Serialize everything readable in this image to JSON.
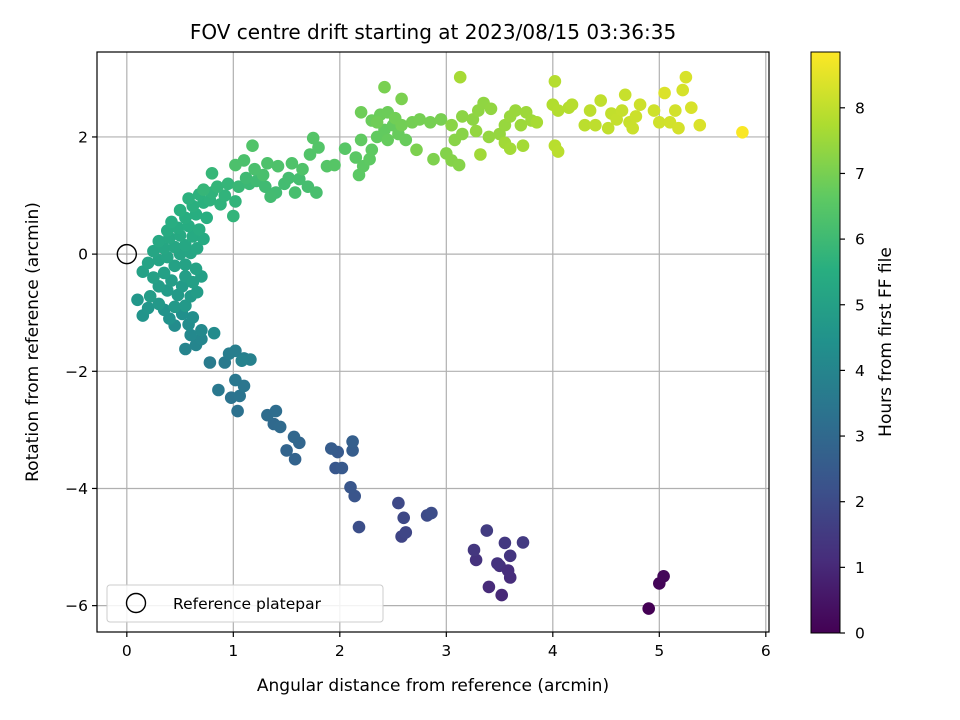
{
  "chart_data": {
    "type": "scatter",
    "title": "FOV centre drift starting at 2023/08/15 03:36:35",
    "xlabel": "Angular distance from reference (arcmin)",
    "ylabel": "Rotation from reference (arcmin)",
    "xlim": [
      -0.28,
      6.03
    ],
    "ylim": [
      -6.45,
      3.45
    ],
    "xticks": [
      0,
      1,
      2,
      3,
      4,
      5,
      6
    ],
    "yticks": [
      -6,
      -4,
      -2,
      0,
      2
    ],
    "grid": true,
    "legend": {
      "placement": "lower-left",
      "entries": [
        "Reference platepar"
      ]
    },
    "reference_point": {
      "x": 0,
      "y": 0,
      "label": "Reference platepar"
    },
    "colorbar": {
      "label": "Hours from first FF file",
      "range": [
        0,
        8.85
      ],
      "ticks": [
        0,
        1,
        2,
        3,
        4,
        5,
        6,
        7,
        8
      ],
      "colormap": "viridis"
    },
    "points": [
      [
        4.9,
        -6.05,
        0.0
      ],
      [
        5.0,
        -5.62,
        0.1
      ],
      [
        5.04,
        -5.5,
        0.15
      ],
      [
        3.52,
        -5.82,
        1.0
      ],
      [
        3.4,
        -5.68,
        1.05
      ],
      [
        3.6,
        -5.52,
        1.1
      ],
      [
        3.58,
        -5.4,
        1.15
      ],
      [
        3.5,
        -5.32,
        1.2
      ],
      [
        3.28,
        -5.22,
        1.25
      ],
      [
        3.48,
        -5.28,
        1.3
      ],
      [
        3.6,
        -5.15,
        1.35
      ],
      [
        3.26,
        -5.05,
        1.4
      ],
      [
        3.55,
        -4.93,
        1.45
      ],
      [
        3.72,
        -4.92,
        1.5
      ],
      [
        3.38,
        -4.72,
        1.55
      ],
      [
        2.58,
        -4.82,
        1.8
      ],
      [
        2.62,
        -4.75,
        1.85
      ],
      [
        2.6,
        -4.5,
        1.9
      ],
      [
        2.55,
        -4.25,
        1.95
      ],
      [
        2.82,
        -4.46,
        2.0
      ],
      [
        2.86,
        -4.42,
        2.05
      ],
      [
        2.18,
        -4.66,
        2.1
      ],
      [
        2.14,
        -4.13,
        2.3
      ],
      [
        2.1,
        -3.98,
        2.35
      ],
      [
        1.96,
        -3.65,
        2.4
      ],
      [
        2.02,
        -3.65,
        2.45
      ],
      [
        1.98,
        -3.38,
        2.5
      ],
      [
        1.92,
        -3.32,
        2.55
      ],
      [
        2.12,
        -3.35,
        2.6
      ],
      [
        2.12,
        -3.2,
        2.65
      ],
      [
        1.58,
        -3.5,
        2.8
      ],
      [
        1.5,
        -3.35,
        2.85
      ],
      [
        1.62,
        -3.22,
        2.9
      ],
      [
        1.57,
        -3.12,
        2.95
      ],
      [
        1.38,
        -2.9,
        3.0
      ],
      [
        1.44,
        -2.95,
        3.05
      ],
      [
        1.32,
        -2.75,
        3.1
      ],
      [
        1.4,
        -2.68,
        3.15
      ],
      [
        1.04,
        -2.68,
        3.3
      ],
      [
        0.98,
        -2.45,
        3.35
      ],
      [
        1.06,
        -2.42,
        3.4
      ],
      [
        1.1,
        -2.25,
        3.45
      ],
      [
        1.02,
        -2.15,
        3.5
      ],
      [
        0.86,
        -2.32,
        3.55
      ],
      [
        0.92,
        -1.85,
        3.6
      ],
      [
        0.78,
        -1.85,
        3.65
      ],
      [
        0.96,
        -1.7,
        3.7
      ],
      [
        1.02,
        -1.65,
        3.75
      ],
      [
        1.1,
        -1.78,
        3.8
      ],
      [
        1.16,
        -1.8,
        3.85
      ],
      [
        1.08,
        -1.82,
        3.9
      ],
      [
        0.55,
        -1.62,
        3.95
      ],
      [
        0.65,
        -1.55,
        4.0
      ],
      [
        0.7,
        -1.45,
        4.05
      ],
      [
        0.6,
        -1.38,
        4.1
      ],
      [
        0.7,
        -1.3,
        4.15
      ],
      [
        0.82,
        -1.35,
        4.2
      ],
      [
        0.45,
        -1.22,
        4.25
      ],
      [
        0.58,
        -1.2,
        4.3
      ],
      [
        0.62,
        -1.08,
        4.35
      ],
      [
        0.52,
        -1.02,
        4.4
      ],
      [
        0.4,
        -1.1,
        4.45
      ],
      [
        0.35,
        -0.95,
        4.5
      ],
      [
        0.15,
        -1.05,
        4.55
      ],
      [
        0.2,
        -0.92,
        4.6
      ],
      [
        0.1,
        -0.78,
        4.65
      ],
      [
        0.3,
        -0.85,
        4.7
      ],
      [
        0.45,
        -0.9,
        4.72
      ],
      [
        0.55,
        -0.88,
        4.74
      ],
      [
        0.6,
        -0.72,
        4.76
      ],
      [
        0.48,
        -0.7,
        4.78
      ],
      [
        0.38,
        -0.62,
        4.8
      ],
      [
        0.52,
        -0.55,
        4.82
      ],
      [
        0.66,
        -0.65,
        4.84
      ],
      [
        0.22,
        -0.72,
        4.86
      ],
      [
        0.3,
        -0.55,
        4.88
      ],
      [
        0.42,
        -0.45,
        4.9
      ],
      [
        0.55,
        -0.38,
        4.92
      ],
      [
        0.62,
        -0.48,
        4.94
      ],
      [
        0.7,
        -0.38,
        4.96
      ],
      [
        0.35,
        -0.32,
        4.98
      ],
      [
        0.25,
        -0.4,
        5.0
      ],
      [
        0.15,
        -0.3,
        5.02
      ],
      [
        0.45,
        -0.2,
        5.04
      ],
      [
        0.55,
        -0.18,
        5.06
      ],
      [
        0.65,
        -0.25,
        5.08
      ],
      [
        0.2,
        -0.15,
        5.1
      ],
      [
        0.3,
        -0.1,
        5.12
      ],
      [
        0.38,
        -0.05,
        5.14
      ],
      [
        0.5,
        0.0,
        5.16
      ],
      [
        0.6,
        0.02,
        5.18
      ],
      [
        0.25,
        0.05,
        5.2
      ],
      [
        0.35,
        0.1,
        5.22
      ],
      [
        0.45,
        0.12,
        5.24
      ],
      [
        0.55,
        0.15,
        5.26
      ],
      [
        0.66,
        0.1,
        5.28
      ],
      [
        0.3,
        0.22,
        5.3
      ],
      [
        0.4,
        0.28,
        5.32
      ],
      [
        0.5,
        0.32,
        5.34
      ],
      [
        0.62,
        0.3,
        5.36
      ],
      [
        0.72,
        0.26,
        5.38
      ],
      [
        0.38,
        0.4,
        5.4
      ],
      [
        0.48,
        0.45,
        5.42
      ],
      [
        0.58,
        0.48,
        5.44
      ],
      [
        0.68,
        0.42,
        5.46
      ],
      [
        0.42,
        0.55,
        5.48
      ],
      [
        0.55,
        0.62,
        5.5
      ],
      [
        0.65,
        0.68,
        5.52
      ],
      [
        0.75,
        0.62,
        5.54
      ],
      [
        0.5,
        0.75,
        5.56
      ],
      [
        0.62,
        0.82,
        5.58
      ],
      [
        0.72,
        0.88,
        5.6
      ],
      [
        0.58,
        0.95,
        5.62
      ],
      [
        0.68,
        1.02,
        5.64
      ],
      [
        0.78,
        0.92,
        5.66
      ],
      [
        0.88,
        0.85,
        5.68
      ],
      [
        0.8,
        1.05,
        5.7
      ],
      [
        0.92,
        1.0,
        5.72
      ],
      [
        1.02,
        0.9,
        5.74
      ],
      [
        1.0,
        0.65,
        5.76
      ],
      [
        0.85,
        1.15,
        5.78
      ],
      [
        0.95,
        1.2,
        5.8
      ],
      [
        0.72,
        1.1,
        5.82
      ],
      [
        0.8,
        1.38,
        5.84
      ],
      [
        1.05,
        1.15,
        5.9
      ],
      [
        1.15,
        1.2,
        5.95
      ],
      [
        1.12,
        1.3,
        6.0
      ],
      [
        1.22,
        1.25,
        6.02
      ],
      [
        1.3,
        1.15,
        6.04
      ],
      [
        1.4,
        1.05,
        6.06
      ],
      [
        1.35,
        0.98,
        6.08
      ],
      [
        1.48,
        1.2,
        6.1
      ],
      [
        1.52,
        1.3,
        6.12
      ],
      [
        1.62,
        1.28,
        6.14
      ],
      [
        1.7,
        1.15,
        6.16
      ],
      [
        1.58,
        1.05,
        6.18
      ],
      [
        1.78,
        1.05,
        6.2
      ],
      [
        1.28,
        1.35,
        6.22
      ],
      [
        1.2,
        1.45,
        6.24
      ],
      [
        1.1,
        1.6,
        6.26
      ],
      [
        1.02,
        1.52,
        6.28
      ],
      [
        1.32,
        1.55,
        6.3
      ],
      [
        1.42,
        1.5,
        6.32
      ],
      [
        1.55,
        1.55,
        6.34
      ],
      [
        1.65,
        1.45,
        6.36
      ],
      [
        1.18,
        1.85,
        6.38
      ],
      [
        1.72,
        1.7,
        6.4
      ],
      [
        1.8,
        1.82,
        6.42
      ],
      [
        1.75,
        1.98,
        6.44
      ],
      [
        1.88,
        1.5,
        6.46
      ],
      [
        1.95,
        1.52,
        6.48
      ],
      [
        2.05,
        1.8,
        6.5
      ],
      [
        2.15,
        1.65,
        6.55
      ],
      [
        2.18,
        1.35,
        6.58
      ],
      [
        2.22,
        1.5,
        6.6
      ],
      [
        2.28,
        1.62,
        6.62
      ],
      [
        2.3,
        1.78,
        6.64
      ],
      [
        2.2,
        1.95,
        6.66
      ],
      [
        2.35,
        2.0,
        6.68
      ],
      [
        2.42,
        2.12,
        6.7
      ],
      [
        2.5,
        2.2,
        6.72
      ],
      [
        2.45,
        1.95,
        6.74
      ],
      [
        2.55,
        2.05,
        6.76
      ],
      [
        2.62,
        1.95,
        6.78
      ],
      [
        2.3,
        2.28,
        6.8
      ],
      [
        2.38,
        2.38,
        6.82
      ],
      [
        2.45,
        2.42,
        6.84
      ],
      [
        2.2,
        2.42,
        6.86
      ],
      [
        2.35,
        2.25,
        6.88
      ],
      [
        2.52,
        2.32,
        6.9
      ],
      [
        2.58,
        2.2,
        6.92
      ],
      [
        2.68,
        2.25,
        6.94
      ],
      [
        2.75,
        2.3,
        6.96
      ],
      [
        2.85,
        2.25,
        6.98
      ],
      [
        2.95,
        2.3,
        7.0
      ],
      [
        2.42,
        2.85,
        7.02
      ],
      [
        2.58,
        2.65,
        7.04
      ],
      [
        2.72,
        1.78,
        7.06
      ],
      [
        2.88,
        1.62,
        7.08
      ],
      [
        3.0,
        1.72,
        7.15
      ],
      [
        3.05,
        1.6,
        7.18
      ],
      [
        3.12,
        1.52,
        7.2
      ],
      [
        3.08,
        1.95,
        7.22
      ],
      [
        3.15,
        2.05,
        7.24
      ],
      [
        3.05,
        2.2,
        7.26
      ],
      [
        3.15,
        2.35,
        7.28
      ],
      [
        3.25,
        2.3,
        7.3
      ],
      [
        3.3,
        2.45,
        7.32
      ],
      [
        3.35,
        2.58,
        7.34
      ],
      [
        3.42,
        2.48,
        7.36
      ],
      [
        3.28,
        2.1,
        7.38
      ],
      [
        3.4,
        2.0,
        7.4
      ],
      [
        3.5,
        2.05,
        7.42
      ],
      [
        3.55,
        2.2,
        7.44
      ],
      [
        3.6,
        2.35,
        7.46
      ],
      [
        3.65,
        2.45,
        7.48
      ],
      [
        3.7,
        2.2,
        7.5
      ],
      [
        3.75,
        2.42,
        7.52
      ],
      [
        3.8,
        2.28,
        7.54
      ],
      [
        3.32,
        1.7,
        7.56
      ],
      [
        3.55,
        1.9,
        7.58
      ],
      [
        3.6,
        1.8,
        7.6
      ],
      [
        3.72,
        1.85,
        7.62
      ],
      [
        3.13,
        3.02,
        7.64
      ],
      [
        3.85,
        2.25,
        7.66
      ],
      [
        4.0,
        2.55,
        7.8
      ],
      [
        4.05,
        2.45,
        7.82
      ],
      [
        4.15,
        2.5,
        7.84
      ],
      [
        4.02,
        2.95,
        7.86
      ],
      [
        4.18,
        2.55,
        7.88
      ],
      [
        4.02,
        1.85,
        7.9
      ],
      [
        4.05,
        1.75,
        7.92
      ],
      [
        4.3,
        2.2,
        7.94
      ],
      [
        4.35,
        2.45,
        7.96
      ],
      [
        4.4,
        2.2,
        7.98
      ],
      [
        4.45,
        2.62,
        8.0
      ],
      [
        4.52,
        2.15,
        8.02
      ],
      [
        4.55,
        2.4,
        8.04
      ],
      [
        4.6,
        2.3,
        8.06
      ],
      [
        4.65,
        2.45,
        8.08
      ],
      [
        4.68,
        2.72,
        8.1
      ],
      [
        4.72,
        2.25,
        8.12
      ],
      [
        4.75,
        2.15,
        8.14
      ],
      [
        4.78,
        2.35,
        8.16
      ],
      [
        4.82,
        2.55,
        8.18
      ],
      [
        4.95,
        2.45,
        8.2
      ],
      [
        5.0,
        2.25,
        8.22
      ],
      [
        5.1,
        2.25,
        8.24
      ],
      [
        5.15,
        2.45,
        8.26
      ],
      [
        5.18,
        2.15,
        8.28
      ],
      [
        5.22,
        2.8,
        8.3
      ],
      [
        5.25,
        3.02,
        8.32
      ],
      [
        5.3,
        2.5,
        8.34
      ],
      [
        5.38,
        2.2,
        8.36
      ],
      [
        5.05,
        2.75,
        8.38
      ],
      [
        5.78,
        2.08,
        8.8
      ]
    ]
  }
}
